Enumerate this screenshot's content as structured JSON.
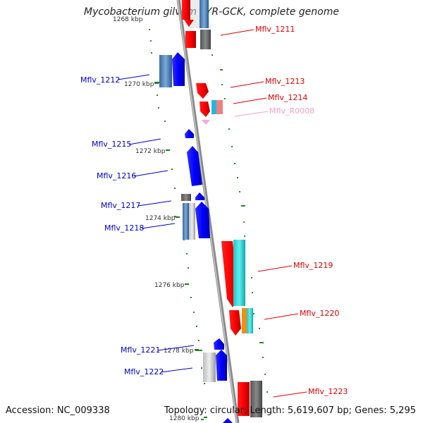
{
  "title": "Mycobacterium gilvum PYR-GCK, complete genome",
  "accession": "Accession: NC_009338",
  "topology": "Topology: circular; Length: 5,619,607 bp; Genes: 5,295",
  "kbp_labels": [
    "1268 kbp",
    "1270 kbp",
    "1272 kbp",
    "1274 kbp",
    "1276 kbp",
    "1278 kbp",
    "1280 kbp"
  ],
  "genes_left": [
    "Mflv_1212",
    "Mflv_1215",
    "Mflv_1216",
    "Mflv_1217",
    "Mflv_1218",
    "Mflv_1221",
    "Mflv_1222"
  ],
  "genes_right": [
    "Mflv_1211",
    "Mflv_1213",
    "Mflv_1214",
    "Mflv_R0008",
    "Mflv_1219",
    "Mflv_1220",
    "Mflv_1223"
  ],
  "colors": {
    "forward": "#0000ff",
    "reverse": "#ff0000",
    "rna": "#f8a8d0",
    "backbone": "#a8a8a8",
    "gc_tick": "#2a8a2a",
    "leader_blue": "#0000c8",
    "leader_red": "#e00000"
  }
}
